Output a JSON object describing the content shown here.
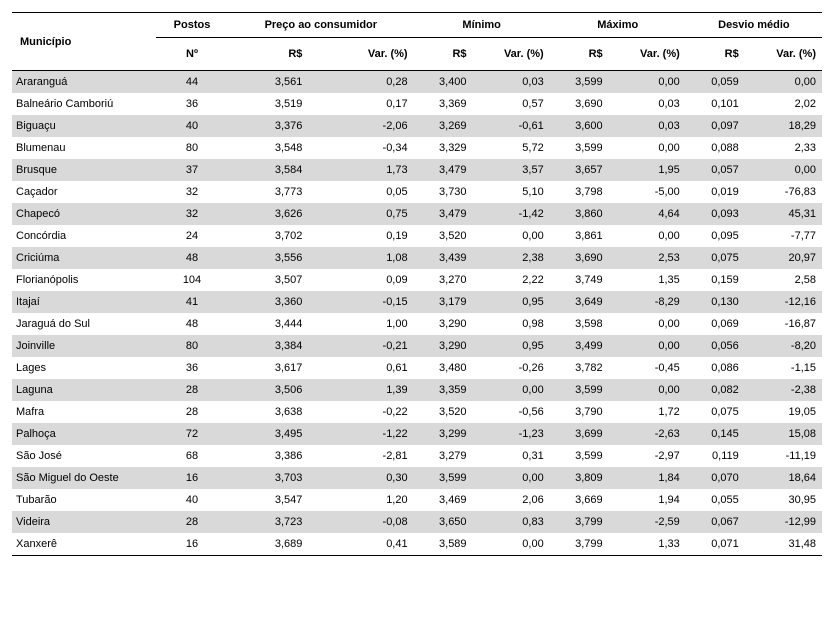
{
  "table": {
    "type": "table",
    "background_color": "#ffffff",
    "stripe_color": "#d9d9d9",
    "text_color": "#000000",
    "border_color": "#000000",
    "font_family": "Arial",
    "font_size_pt": 8,
    "group_headers": {
      "municipio": "Município",
      "postos": "Postos",
      "preco": "Preço ao consumidor",
      "minimo": "Mínimo",
      "maximo": "Máximo",
      "desvio": "Desvio médio"
    },
    "sub_headers": {
      "postos_n": "Nº",
      "rs": "R$",
      "var": "Var. (%)"
    },
    "col_align": {
      "municipio": "left",
      "postos": "center",
      "numeric": "right"
    },
    "rows": [
      {
        "municipio": "Araranguá",
        "postos": "44",
        "preco_rs": "3,561",
        "preco_var": "0,28",
        "min_rs": "3,400",
        "min_var": "0,03",
        "max_rs": "3,599",
        "max_var": "0,00",
        "dev_rs": "0,059",
        "dev_var": "0,00"
      },
      {
        "municipio": "Balneário Camboriú",
        "postos": "36",
        "preco_rs": "3,519",
        "preco_var": "0,17",
        "min_rs": "3,369",
        "min_var": "0,57",
        "max_rs": "3,690",
        "max_var": "0,03",
        "dev_rs": "0,101",
        "dev_var": "2,02"
      },
      {
        "municipio": "Biguaçu",
        "postos": "40",
        "preco_rs": "3,376",
        "preco_var": "-2,06",
        "min_rs": "3,269",
        "min_var": "-0,61",
        "max_rs": "3,600",
        "max_var": "0,03",
        "dev_rs": "0,097",
        "dev_var": "18,29"
      },
      {
        "municipio": "Blumenau",
        "postos": "80",
        "preco_rs": "3,548",
        "preco_var": "-0,34",
        "min_rs": "3,329",
        "min_var": "5,72",
        "max_rs": "3,599",
        "max_var": "0,00",
        "dev_rs": "0,088",
        "dev_var": "2,33"
      },
      {
        "municipio": "Brusque",
        "postos": "37",
        "preco_rs": "3,584",
        "preco_var": "1,73",
        "min_rs": "3,479",
        "min_var": "3,57",
        "max_rs": "3,657",
        "max_var": "1,95",
        "dev_rs": "0,057",
        "dev_var": "0,00"
      },
      {
        "municipio": "Caçador",
        "postos": "32",
        "preco_rs": "3,773",
        "preco_var": "0,05",
        "min_rs": "3,730",
        "min_var": "5,10",
        "max_rs": "3,798",
        "max_var": "-5,00",
        "dev_rs": "0,019",
        "dev_var": "-76,83"
      },
      {
        "municipio": "Chapecó",
        "postos": "32",
        "preco_rs": "3,626",
        "preco_var": "0,75",
        "min_rs": "3,479",
        "min_var": "-1,42",
        "max_rs": "3,860",
        "max_var": "4,64",
        "dev_rs": "0,093",
        "dev_var": "45,31"
      },
      {
        "municipio": "Concórdia",
        "postos": "24",
        "preco_rs": "3,702",
        "preco_var": "0,19",
        "min_rs": "3,520",
        "min_var": "0,00",
        "max_rs": "3,861",
        "max_var": "0,00",
        "dev_rs": "0,095",
        "dev_var": "-7,77"
      },
      {
        "municipio": "Criciúma",
        "postos": "48",
        "preco_rs": "3,556",
        "preco_var": "1,08",
        "min_rs": "3,439",
        "min_var": "2,38",
        "max_rs": "3,690",
        "max_var": "2,53",
        "dev_rs": "0,075",
        "dev_var": "20,97"
      },
      {
        "municipio": "Florianópolis",
        "postos": "104",
        "preco_rs": "3,507",
        "preco_var": "0,09",
        "min_rs": "3,270",
        "min_var": "2,22",
        "max_rs": "3,749",
        "max_var": "1,35",
        "dev_rs": "0,159",
        "dev_var": "2,58"
      },
      {
        "municipio": "Itajaí",
        "postos": "41",
        "preco_rs": "3,360",
        "preco_var": "-0,15",
        "min_rs": "3,179",
        "min_var": "0,95",
        "max_rs": "3,649",
        "max_var": "-8,29",
        "dev_rs": "0,130",
        "dev_var": "-12,16"
      },
      {
        "municipio": "Jaraguá do Sul",
        "postos": "48",
        "preco_rs": "3,444",
        "preco_var": "1,00",
        "min_rs": "3,290",
        "min_var": "0,98",
        "max_rs": "3,598",
        "max_var": "0,00",
        "dev_rs": "0,069",
        "dev_var": "-16,87"
      },
      {
        "municipio": "Joinville",
        "postos": "80",
        "preco_rs": "3,384",
        "preco_var": "-0,21",
        "min_rs": "3,290",
        "min_var": "0,95",
        "max_rs": "3,499",
        "max_var": "0,00",
        "dev_rs": "0,056",
        "dev_var": "-8,20"
      },
      {
        "municipio": "Lages",
        "postos": "36",
        "preco_rs": "3,617",
        "preco_var": "0,61",
        "min_rs": "3,480",
        "min_var": "-0,26",
        "max_rs": "3,782",
        "max_var": "-0,45",
        "dev_rs": "0,086",
        "dev_var": "-1,15"
      },
      {
        "municipio": "Laguna",
        "postos": "28",
        "preco_rs": "3,506",
        "preco_var": "1,39",
        "min_rs": "3,359",
        "min_var": "0,00",
        "max_rs": "3,599",
        "max_var": "0,00",
        "dev_rs": "0,082",
        "dev_var": "-2,38"
      },
      {
        "municipio": "Mafra",
        "postos": "28",
        "preco_rs": "3,638",
        "preco_var": "-0,22",
        "min_rs": "3,520",
        "min_var": "-0,56",
        "max_rs": "3,790",
        "max_var": "1,72",
        "dev_rs": "0,075",
        "dev_var": "19,05"
      },
      {
        "municipio": "Palhoça",
        "postos": "72",
        "preco_rs": "3,495",
        "preco_var": "-1,22",
        "min_rs": "3,299",
        "min_var": "-1,23",
        "max_rs": "3,699",
        "max_var": "-2,63",
        "dev_rs": "0,145",
        "dev_var": "15,08"
      },
      {
        "municipio": "São José",
        "postos": "68",
        "preco_rs": "3,386",
        "preco_var": "-2,81",
        "min_rs": "3,279",
        "min_var": "0,31",
        "max_rs": "3,599",
        "max_var": "-2,97",
        "dev_rs": "0,119",
        "dev_var": "-11,19"
      },
      {
        "municipio": "São Miguel do Oeste",
        "postos": "16",
        "preco_rs": "3,703",
        "preco_var": "0,30",
        "min_rs": "3,599",
        "min_var": "0,00",
        "max_rs": "3,809",
        "max_var": "1,84",
        "dev_rs": "0,070",
        "dev_var": "18,64"
      },
      {
        "municipio": "Tubarão",
        "postos": "40",
        "preco_rs": "3,547",
        "preco_var": "1,20",
        "min_rs": "3,469",
        "min_var": "2,06",
        "max_rs": "3,669",
        "max_var": "1,94",
        "dev_rs": "0,055",
        "dev_var": "30,95"
      },
      {
        "municipio": "Videira",
        "postos": "28",
        "preco_rs": "3,723",
        "preco_var": "-0,08",
        "min_rs": "3,650",
        "min_var": "0,83",
        "max_rs": "3,799",
        "max_var": "-2,59",
        "dev_rs": "0,067",
        "dev_var": "-12,99"
      },
      {
        "municipio": "Xanxerê",
        "postos": "16",
        "preco_rs": "3,689",
        "preco_var": "0,41",
        "min_rs": "3,589",
        "min_var": "0,00",
        "max_rs": "3,799",
        "max_var": "1,33",
        "dev_rs": "0,071",
        "dev_var": "31,48"
      }
    ]
  }
}
